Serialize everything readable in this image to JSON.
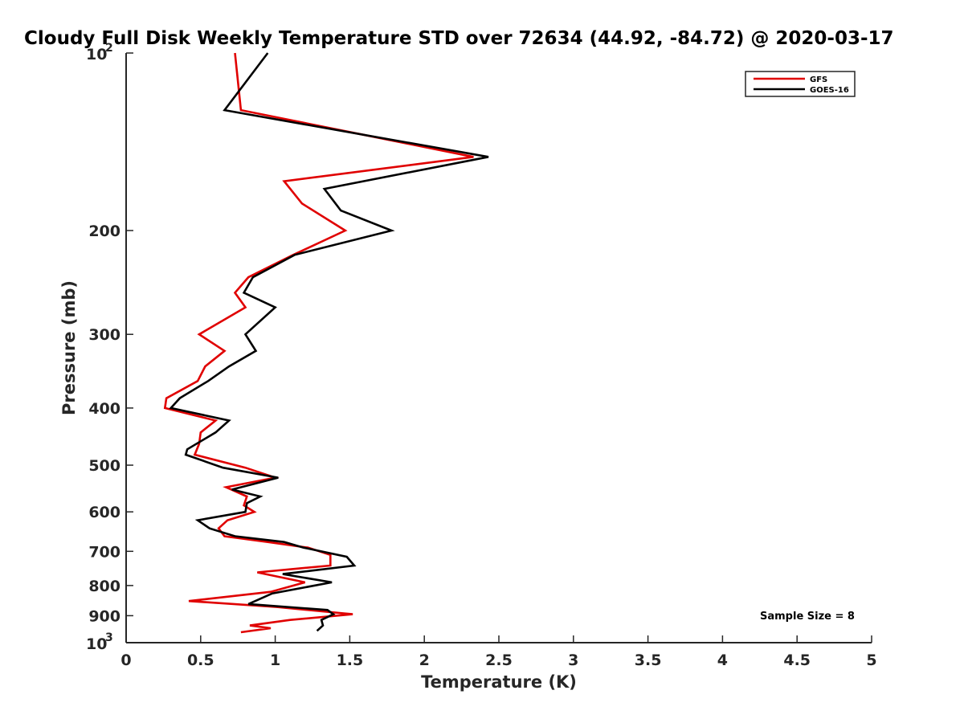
{
  "chart_data": {
    "type": "line",
    "title": "Cloudy Full Disk Weekly Temperature STD over 72634 (44.92, -84.72) @ 2020-03-17",
    "xlabel": "Temperature (K)",
    "ylabel": "Pressure (mb)",
    "xlim": [
      0,
      5
    ],
    "ylim": [
      100,
      1000
    ],
    "y_scale": "log",
    "y_reversed": true,
    "x_ticks": [
      "0",
      "0.5",
      "1",
      "1.5",
      "2",
      "2.5",
      "3",
      "3.5",
      "4",
      "4.5",
      "5"
    ],
    "y_ticks": [
      {
        "value": 100,
        "base": "10",
        "exp": "2",
        "label": ""
      },
      {
        "value": 200,
        "base": "",
        "exp": "",
        "label": "200"
      },
      {
        "value": 300,
        "base": "",
        "exp": "",
        "label": "300"
      },
      {
        "value": 400,
        "base": "",
        "exp": "",
        "label": "400"
      },
      {
        "value": 500,
        "base": "",
        "exp": "",
        "label": "500"
      },
      {
        "value": 600,
        "base": "",
        "exp": "",
        "label": "600"
      },
      {
        "value": 700,
        "base": "",
        "exp": "",
        "label": "700"
      },
      {
        "value": 800,
        "base": "",
        "exp": "",
        "label": "800"
      },
      {
        "value": 900,
        "base": "",
        "exp": "",
        "label": "900"
      },
      {
        "value": 1000,
        "base": "10",
        "exp": "3",
        "label": ""
      }
    ],
    "legend_position": "top-right",
    "grid": false,
    "annotation": "Sample Size = 8",
    "series": [
      {
        "name": "GFS",
        "color": "#e00000",
        "points": [
          [
            0.73,
            100
          ],
          [
            0.77,
            125
          ],
          [
            2.33,
            150
          ],
          [
            1.06,
            165
          ],
          [
            1.18,
            180
          ],
          [
            1.47,
            200
          ],
          [
            1.12,
            220
          ],
          [
            0.82,
            240
          ],
          [
            0.73,
            255
          ],
          [
            0.8,
            270
          ],
          [
            0.49,
            300
          ],
          [
            0.66,
            320
          ],
          [
            0.53,
            340
          ],
          [
            0.48,
            360
          ],
          [
            0.27,
            385
          ],
          [
            0.26,
            400
          ],
          [
            0.6,
            420
          ],
          [
            0.5,
            440
          ],
          [
            0.49,
            460
          ],
          [
            0.46,
            480
          ],
          [
            0.8,
            505
          ],
          [
            1.0,
            525
          ],
          [
            0.67,
            545
          ],
          [
            0.81,
            565
          ],
          [
            0.79,
            585
          ],
          [
            0.86,
            600
          ],
          [
            0.68,
            620
          ],
          [
            0.62,
            640
          ],
          [
            0.66,
            660
          ],
          [
            0.95,
            675
          ],
          [
            1.22,
            690
          ],
          [
            1.37,
            710
          ],
          [
            1.37,
            740
          ],
          [
            0.88,
            760
          ],
          [
            1.2,
            790
          ],
          [
            0.97,
            820
          ],
          [
            0.42,
            850
          ],
          [
            1.01,
            870
          ],
          [
            1.52,
            895
          ],
          [
            1.1,
            915
          ],
          [
            0.83,
            935
          ],
          [
            0.97,
            945
          ],
          [
            0.77,
            960
          ]
        ]
      },
      {
        "name": "GOES-16",
        "color": "#000000",
        "points": [
          [
            0.95,
            100
          ],
          [
            0.66,
            125
          ],
          [
            2.43,
            150
          ],
          [
            1.33,
            170
          ],
          [
            1.44,
            185
          ],
          [
            1.78,
            200
          ],
          [
            1.13,
            220
          ],
          [
            0.85,
            240
          ],
          [
            0.79,
            255
          ],
          [
            1.0,
            270
          ],
          [
            0.8,
            300
          ],
          [
            0.87,
            320
          ],
          [
            0.69,
            340
          ],
          [
            0.55,
            360
          ],
          [
            0.36,
            385
          ],
          [
            0.3,
            400
          ],
          [
            0.69,
            420
          ],
          [
            0.6,
            440
          ],
          [
            0.41,
            470
          ],
          [
            0.4,
            480
          ],
          [
            0.65,
            505
          ],
          [
            1.02,
            525
          ],
          [
            0.71,
            550
          ],
          [
            0.9,
            565
          ],
          [
            0.81,
            580
          ],
          [
            0.8,
            600
          ],
          [
            0.48,
            620
          ],
          [
            0.56,
            640
          ],
          [
            0.73,
            660
          ],
          [
            1.06,
            675
          ],
          [
            1.19,
            690
          ],
          [
            1.48,
            715
          ],
          [
            1.53,
            740
          ],
          [
            1.05,
            765
          ],
          [
            1.38,
            790
          ],
          [
            0.98,
            825
          ],
          [
            0.82,
            860
          ],
          [
            1.35,
            880
          ],
          [
            1.39,
            895
          ],
          [
            1.31,
            915
          ],
          [
            1.32,
            935
          ],
          [
            1.28,
            955
          ]
        ]
      }
    ]
  }
}
